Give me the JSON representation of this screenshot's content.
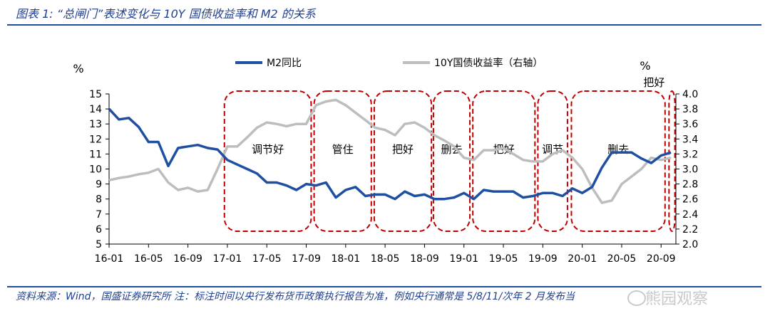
{
  "header": {
    "title": "图表 1:  “总闸门”表述变化与 10Y 国债收益率和 M2 的关系"
  },
  "footer": {
    "source": "资料来源：Wind，国盛证券研究所  注：标注时间以央行发布货币政策执行报告为准，例如央行通常是 5/8/11/次年 2 月发布当",
    "watermark": "熊园观察"
  },
  "colors": {
    "m2": "#1f4fa0",
    "yield": "#bdbdbd",
    "band": "#c00000"
  },
  "chart_data": {
    "type": "line",
    "left_axis_unit": "%",
    "right_axis_unit": "%",
    "left_ylim": [
      5,
      15
    ],
    "right_ylim": [
      2.0,
      4.0
    ],
    "left_ticks": [
      "15",
      "14",
      "13",
      "12",
      "11",
      "10",
      "9",
      "8",
      "7",
      "6",
      "5"
    ],
    "right_ticks": [
      "4.0",
      "3.8",
      "3.6",
      "3.4",
      "3.2",
      "3.0",
      "2.8",
      "2.6",
      "2.4",
      "2.2",
      "2.0"
    ],
    "x_ticks": [
      "16-01",
      "16-05",
      "16-09",
      "17-01",
      "17-05",
      "17-09",
      "18-01",
      "18-05",
      "18-09",
      "19-01",
      "19-05",
      "19-09",
      "20-01",
      "20-05",
      "20-09"
    ],
    "x_tick_months": [
      0,
      4,
      8,
      12,
      16,
      20,
      24,
      28,
      32,
      36,
      40,
      44,
      48,
      52,
      56
    ],
    "x_range_months": [
      0,
      57.5
    ],
    "series": [
      {
        "name": "M2同比",
        "axis": "left",
        "x": [
          0,
          1,
          2,
          3,
          4,
          5,
          6,
          7,
          8,
          9,
          10,
          11,
          12,
          13,
          14,
          15,
          16,
          17,
          18,
          19,
          20,
          21,
          22,
          23,
          24,
          25,
          26,
          27,
          28,
          29,
          30,
          31,
          32,
          33,
          34,
          35,
          36,
          37,
          38,
          39,
          40,
          41,
          42,
          43,
          44,
          45,
          46,
          47,
          48,
          49,
          50,
          51,
          52,
          53,
          54,
          55,
          56,
          57
        ],
        "values": [
          14.0,
          13.3,
          13.4,
          12.8,
          11.8,
          11.8,
          10.2,
          11.4,
          11.5,
          11.6,
          11.4,
          11.3,
          10.6,
          10.3,
          10.0,
          9.7,
          9.1,
          9.1,
          8.9,
          8.6,
          9.0,
          8.9,
          9.1,
          8.1,
          8.6,
          8.8,
          8.2,
          8.3,
          8.3,
          8.0,
          8.5,
          8.2,
          8.3,
          8.0,
          8.0,
          8.1,
          8.4,
          8.0,
          8.6,
          8.5,
          8.5,
          8.5,
          8.1,
          8.2,
          8.4,
          8.4,
          8.2,
          8.7,
          8.4,
          8.8,
          10.1,
          11.1,
          11.1,
          11.1,
          10.7,
          10.4,
          10.9,
          11.1
        ]
      },
      {
        "name": "10Y国债收益率（右轴）",
        "axis": "right",
        "x": [
          0,
          1,
          2,
          3,
          4,
          5,
          6,
          7,
          8,
          9,
          10,
          11,
          12,
          13,
          14,
          15,
          16,
          17,
          18,
          19,
          20,
          21,
          22,
          23,
          24,
          25,
          26,
          27,
          28,
          29,
          30,
          31,
          32,
          33,
          34,
          35,
          36,
          37,
          38,
          39,
          40,
          41,
          42,
          43,
          44,
          45,
          46,
          47,
          48,
          49,
          50,
          51,
          52,
          53,
          54,
          55,
          56,
          57
        ],
        "values": [
          2.85,
          2.88,
          2.9,
          2.93,
          2.95,
          3.0,
          2.82,
          2.72,
          2.75,
          2.7,
          2.72,
          3.0,
          3.3,
          3.3,
          3.42,
          3.55,
          3.62,
          3.6,
          3.57,
          3.6,
          3.6,
          3.85,
          3.9,
          3.92,
          3.85,
          3.75,
          3.65,
          3.55,
          3.52,
          3.45,
          3.6,
          3.62,
          3.55,
          3.45,
          3.38,
          3.3,
          3.15,
          3.12,
          3.25,
          3.25,
          3.28,
          3.2,
          3.12,
          3.1,
          3.1,
          3.2,
          3.25,
          3.15,
          3.0,
          2.75,
          2.55,
          2.58,
          2.8,
          2.9,
          3.0,
          3.15,
          3.12,
          3.15
        ]
      }
    ],
    "bands": [
      {
        "label": "调节好",
        "from": 11.7,
        "to": 20.5
      },
      {
        "label": "管住",
        "from": 20.8,
        "to": 26.6
      },
      {
        "label": "把好",
        "from": 26.9,
        "to": 32.7
      },
      {
        "label": "删去",
        "from": 32.9,
        "to": 36.6
      },
      {
        "label": "把好",
        "from": 36.9,
        "to": 43.2
      },
      {
        "label": "调节",
        "from": 43.5,
        "to": 46.5
      },
      {
        "label": "删去",
        "from": 46.9,
        "to": 56.4
      },
      {
        "label": "把好",
        "from": 56.8,
        "to": 57.4
      }
    ]
  }
}
